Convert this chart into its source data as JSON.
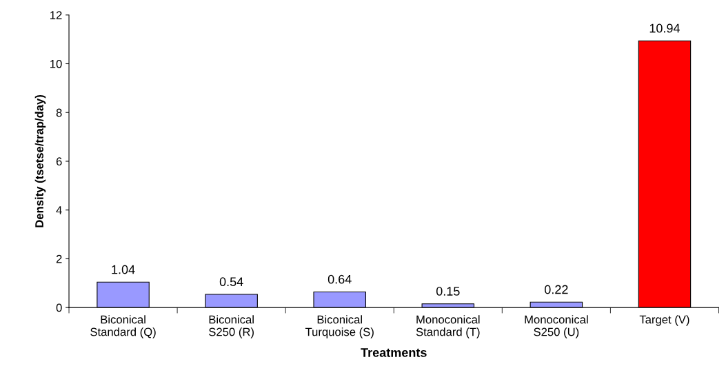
{
  "chart_data": {
    "type": "bar",
    "xlabel": "Treatments",
    "ylabel": "Density (tsetse/trap/day)",
    "categories": [
      "Biconical\nStandard (Q)",
      "Biconical\nS250 (R)",
      "Biconical\nTurquoise (S)",
      "Monoconical\nStandard (T)",
      "Monoconical\nS250 (U)",
      "Target (V)"
    ],
    "values": [
      1.04,
      0.54,
      0.64,
      0.15,
      0.22,
      10.94
    ],
    "colors": [
      "#9999ff",
      "#9999ff",
      "#9999ff",
      "#9999ff",
      "#9999ff",
      "#ff0000"
    ],
    "ylim": [
      0,
      12
    ],
    "yticks": [
      0,
      2,
      4,
      6,
      8,
      10,
      12
    ],
    "data_labels": true,
    "grid": false,
    "legend": false
  }
}
